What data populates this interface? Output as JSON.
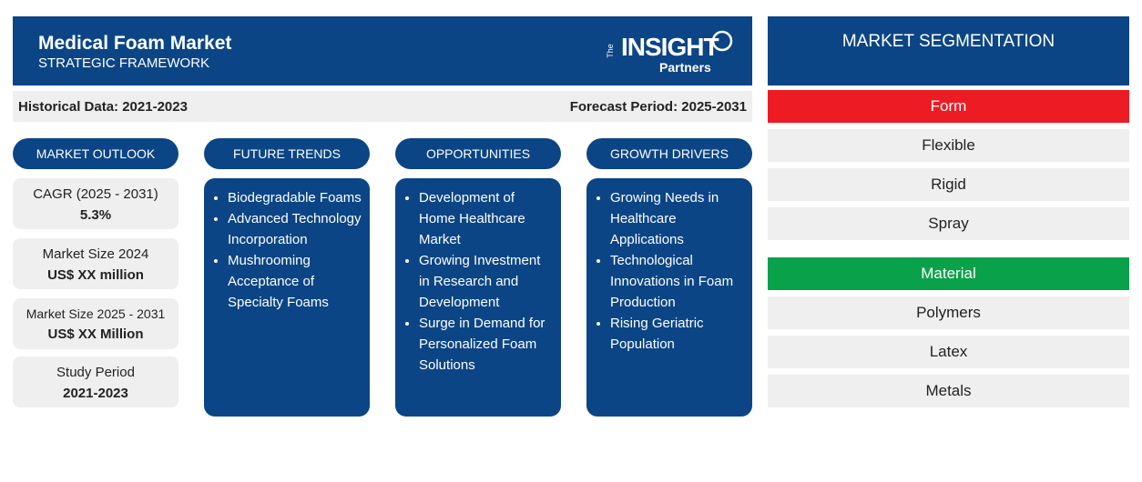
{
  "header": {
    "title": "Medical Foam Market",
    "subtitle": "STRATEGIC FRAMEWORK",
    "logo": {
      "small": "The",
      "main": "INSIGHT",
      "sub": "Partners"
    }
  },
  "periods": {
    "historical": "Historical Data: 2021-2023",
    "forecast": "Forecast Period: 2025-2031"
  },
  "outlook": {
    "title": "MARKET OUTLOOK",
    "items": [
      {
        "label": "CAGR (2025 - 2031)",
        "value": "5.3%"
      },
      {
        "label": "Market Size 2024",
        "value": "US$ XX million"
      },
      {
        "label": "Market Size 2025 - 2031",
        "value": "US$ XX Million"
      },
      {
        "label": "Study Period",
        "value": "2021-2023"
      }
    ]
  },
  "columns": [
    {
      "title": "FUTURE TRENDS",
      "items": [
        "Biodegradable Foams",
        "Advanced Technology Incorporation",
        "Mushrooming Acceptance of Specialty Foams"
      ]
    },
    {
      "title": "OPPORTUNITIES",
      "items": [
        "Development of Home Healthcare Market",
        "Growing Investment in Research and Development",
        "Surge in Demand for Personalized Foam Solutions"
      ]
    },
    {
      "title": "GROWTH DRIVERS",
      "items": [
        "Growing Needs in Healthcare Applications",
        "Technological Innovations in Foam Production",
        "Rising Geriatric Population"
      ]
    }
  ],
  "segmentation": {
    "title": "MARKET SEGMENTATION",
    "groups": [
      {
        "name": "Form",
        "color": "#ed1c24",
        "items": [
          "Flexible",
          "Rigid",
          "Spray"
        ]
      },
      {
        "name": "Material",
        "color": "#0aa14b",
        "items": [
          "Polymers",
          "Latex",
          "Metals"
        ]
      }
    ]
  }
}
